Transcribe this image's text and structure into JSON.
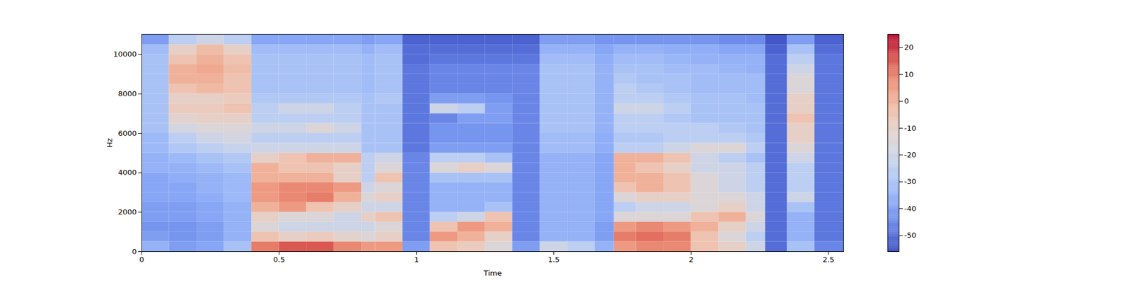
{
  "chart_data": {
    "type": "heatmap",
    "x_label": "Time",
    "y_label": "Hz",
    "xlim": [
      0,
      2.555
    ],
    "ylim": [
      0,
      11025
    ],
    "xticks": [
      0,
      0.5,
      1,
      1.5,
      2,
      2.5
    ],
    "yticks": [
      0,
      2000,
      4000,
      6000,
      8000,
      10000
    ],
    "x_edges": [
      0,
      0.1,
      0.2,
      0.3,
      0.4,
      0.5,
      0.6,
      0.7,
      0.8,
      0.85,
      0.95,
      1.05,
      1.15,
      1.25,
      1.35,
      1.45,
      1.55,
      1.65,
      1.72,
      1.8,
      1.9,
      2.0,
      2.1,
      2.2,
      2.27,
      2.35,
      2.45,
      2.555
    ],
    "y_edges": [
      0,
      500,
      1000,
      1500,
      2000,
      2500,
      3000,
      3500,
      4000,
      4500,
      5000,
      5500,
      6000,
      6500,
      7000,
      7500,
      8000,
      8500,
      9000,
      9500,
      10000,
      10500,
      11025
    ],
    "values": [
      [
        -35,
        -40,
        -38,
        -30,
        10,
        15,
        15,
        8,
        5,
        5,
        -40,
        -5,
        -8,
        -15,
        -40,
        -20,
        -25,
        -35,
        5,
        8,
        8,
        -5,
        -10,
        -20,
        -50,
        -30,
        -45
      ],
      [
        -40,
        -42,
        -40,
        -35,
        -5,
        -10,
        -8,
        -12,
        -15,
        -10,
        -45,
        5,
        0,
        -10,
        -45,
        -35,
        -35,
        -40,
        10,
        12,
        10,
        -5,
        -15,
        -25,
        -50,
        -35,
        -48
      ],
      [
        -42,
        -42,
        -40,
        -35,
        -15,
        -20,
        -20,
        -20,
        -20,
        -15,
        -45,
        -5,
        5,
        0,
        -45,
        -35,
        -35,
        -40,
        5,
        8,
        5,
        0,
        -10,
        -20,
        -50,
        -35,
        -48
      ],
      [
        -40,
        -40,
        -38,
        -35,
        -10,
        -15,
        -15,
        -20,
        -10,
        -5,
        -45,
        -25,
        -20,
        -5,
        -45,
        -35,
        -35,
        -38,
        -15,
        -15,
        -15,
        -5,
        0,
        -15,
        -50,
        -35,
        -48
      ],
      [
        -40,
        -40,
        -38,
        -35,
        0,
        5,
        -5,
        -10,
        -20,
        -20,
        -45,
        -35,
        -35,
        -30,
        -45,
        -35,
        -35,
        -38,
        -25,
        -20,
        -20,
        -15,
        -10,
        -20,
        -50,
        -30,
        -48
      ],
      [
        -38,
        -38,
        -36,
        -33,
        5,
        8,
        10,
        0,
        -15,
        -10,
        -45,
        -35,
        -35,
        -35,
        -45,
        -35,
        -35,
        -38,
        -15,
        -10,
        -10,
        -15,
        -15,
        -20,
        -50,
        -20,
        -48
      ],
      [
        -38,
        -38,
        -35,
        -33,
        5,
        8,
        8,
        5,
        -20,
        -15,
        -45,
        -35,
        -35,
        -35,
        -45,
        -35,
        -35,
        -38,
        -5,
        0,
        -5,
        -15,
        -20,
        -25,
        -50,
        -25,
        -48
      ],
      [
        -38,
        -36,
        -35,
        -33,
        0,
        0,
        0,
        -10,
        -25,
        -5,
        -45,
        -30,
        -30,
        -30,
        -45,
        -35,
        -35,
        -38,
        0,
        0,
        -5,
        -15,
        -20,
        -25,
        -50,
        -25,
        -48
      ],
      [
        -35,
        -35,
        -33,
        -30,
        0,
        -5,
        -5,
        -10,
        -25,
        -15,
        -45,
        -15,
        -10,
        -15,
        -45,
        -35,
        -35,
        -38,
        0,
        -5,
        -10,
        -20,
        -20,
        -25,
        -50,
        -25,
        -48
      ],
      [
        -35,
        -33,
        -30,
        -28,
        -10,
        -5,
        0,
        0,
        -25,
        -20,
        -45,
        -25,
        -25,
        -30,
        -45,
        -35,
        -35,
        -38,
        0,
        0,
        -5,
        -20,
        -25,
        -30,
        -50,
        -20,
        -48
      ],
      [
        -33,
        -28,
        -25,
        -22,
        -20,
        -20,
        -20,
        -20,
        -30,
        -30,
        -48,
        -40,
        -40,
        -40,
        -45,
        -32,
        -32,
        -36,
        -25,
        -25,
        -20,
        -15,
        -15,
        -25,
        -50,
        -15,
        -48
      ],
      [
        -33,
        -25,
        -20,
        -18,
        -25,
        -25,
        -25,
        -25,
        -30,
        -30,
        -48,
        -42,
        -42,
        -42,
        -45,
        -32,
        -32,
        -36,
        -28,
        -28,
        -25,
        -25,
        -25,
        -28,
        -50,
        -10,
        -48
      ],
      [
        -30,
        -18,
        -15,
        -15,
        -20,
        -20,
        -15,
        -20,
        -30,
        -30,
        -48,
        -42,
        -42,
        -42,
        -45,
        -30,
        -30,
        -35,
        -25,
        -25,
        -25,
        -25,
        -28,
        -30,
        -50,
        -10,
        -48
      ],
      [
        -30,
        -12,
        -10,
        -10,
        -25,
        -25,
        -25,
        -25,
        -30,
        -30,
        -48,
        -45,
        -40,
        -40,
        -45,
        -30,
        -30,
        -35,
        -25,
        -25,
        -28,
        -30,
        -30,
        -30,
        -50,
        -5,
        -48
      ],
      [
        -30,
        -8,
        -8,
        -5,
        -25,
        -20,
        -20,
        -25,
        -30,
        -30,
        -48,
        -20,
        -25,
        -40,
        -45,
        -30,
        -30,
        -35,
        -20,
        -20,
        -25,
        -30,
        -30,
        -30,
        -50,
        -10,
        -48
      ],
      [
        -30,
        -10,
        -10,
        -8,
        -28,
        -28,
        -28,
        -28,
        -30,
        -28,
        -48,
        -40,
        -40,
        -42,
        -45,
        -30,
        -30,
        -35,
        -25,
        -25,
        -28,
        -30,
        -30,
        -32,
        -50,
        -10,
        -48
      ],
      [
        -30,
        -5,
        -2,
        -5,
        -30,
        -30,
        -30,
        -30,
        -32,
        -30,
        -48,
        -45,
        -45,
        -45,
        -45,
        -30,
        -30,
        -35,
        -25,
        -28,
        -30,
        -32,
        -32,
        -32,
        -50,
        -15,
        -48
      ],
      [
        -30,
        0,
        0,
        -5,
        -30,
        -30,
        -30,
        -30,
        -32,
        -30,
        -48,
        -45,
        -45,
        -45,
        -45,
        -30,
        -30,
        -35,
        -28,
        -30,
        -30,
        -32,
        -32,
        -32,
        -50,
        -15,
        -48
      ],
      [
        -30,
        0,
        2,
        -3,
        -30,
        -30,
        -30,
        -30,
        -32,
        -30,
        -48,
        -45,
        -45,
        -45,
        -45,
        -30,
        -30,
        -35,
        -30,
        -30,
        -32,
        -32,
        -34,
        -35,
        -50,
        -20,
        -48
      ],
      [
        -30,
        -5,
        0,
        -5,
        -30,
        -30,
        -30,
        -30,
        -32,
        -30,
        -50,
        -48,
        -48,
        -48,
        -48,
        -32,
        -32,
        -36,
        -32,
        -32,
        -34,
        -35,
        -35,
        -35,
        -50,
        -25,
        -48
      ],
      [
        -32,
        -10,
        -3,
        -10,
        -32,
        -32,
        -32,
        -32,
        -35,
        -32,
        -50,
        -50,
        -50,
        -50,
        -50,
        -35,
        -35,
        -38,
        -35,
        -35,
        -36,
        -36,
        -38,
        -38,
        -52,
        -30,
        -50
      ],
      [
        -40,
        -25,
        -20,
        -25,
        -38,
        -38,
        -38,
        -38,
        -40,
        -38,
        -52,
        -52,
        -52,
        -52,
        -52,
        -40,
        -40,
        -42,
        -42,
        -42,
        -42,
        -42,
        -44,
        -44,
        -54,
        -40,
        -52
      ]
    ],
    "colorbar": {
      "range": [
        -56,
        25
      ],
      "ticks": [
        -50,
        -40,
        -30,
        -20,
        -10,
        0,
        10,
        20
      ]
    }
  }
}
